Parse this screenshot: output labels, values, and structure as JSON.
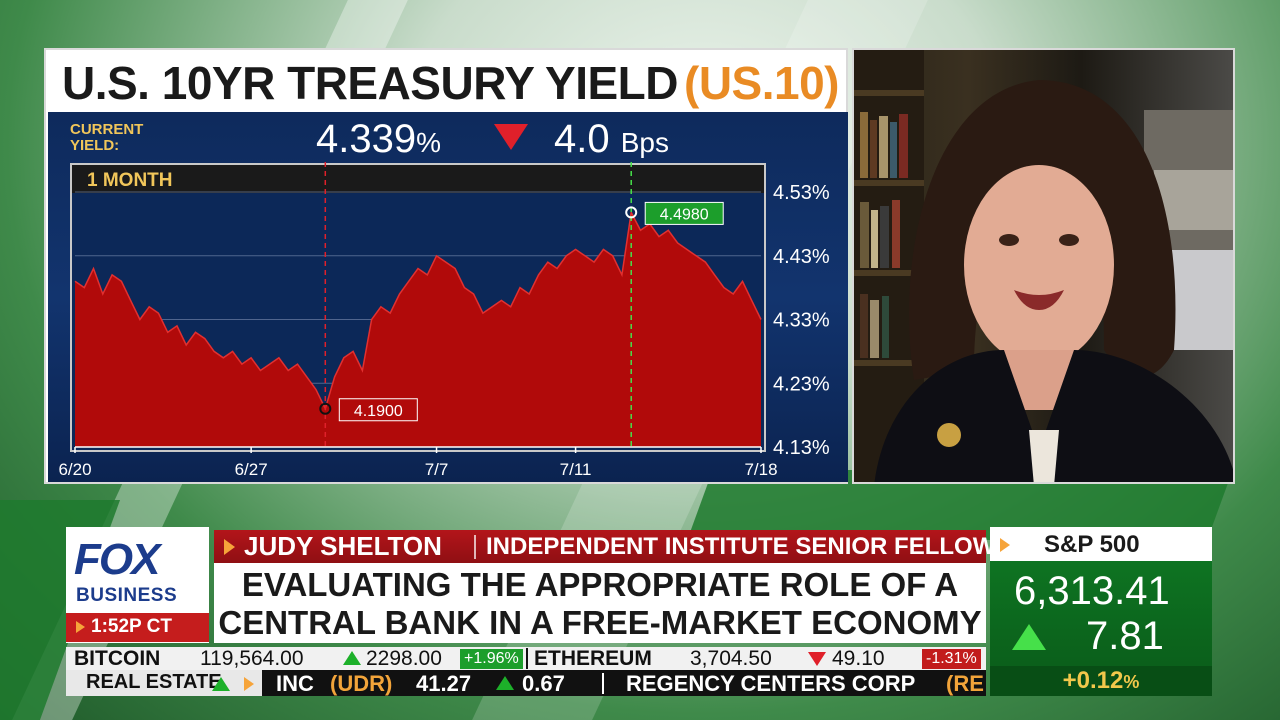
{
  "chart": {
    "title": "U.S. 10YR TREASURY YIELD",
    "symbol": "(US.10)",
    "current_label_line1": "CURRENT",
    "current_label_line2": "YIELD:",
    "current_yield": "4.339",
    "current_yield_unit": "%",
    "change_value": "4.0",
    "change_unit": "Bps",
    "change_direction": "down",
    "range_label": "1 MONTH",
    "colors": {
      "area": "#b10a0a",
      "background": "#0f2d63",
      "up": "#46e04a",
      "down": "#e0202a",
      "accent": "#e98b24"
    }
  },
  "chart_data": {
    "type": "area",
    "title": "U.S. 10YR TREASURY YIELD",
    "range": "1 MONTH",
    "x_ticks": [
      "6/20",
      "6/27",
      "7/7",
      "7/11",
      "7/18"
    ],
    "y_ticks": [
      "4.53%",
      "4.43%",
      "4.33%",
      "4.23%",
      "4.13%"
    ],
    "ylim": [
      4.13,
      4.53
    ],
    "grid": true,
    "x": [
      0,
      1,
      2,
      3,
      4,
      5,
      6,
      7,
      8,
      9,
      10,
      11,
      12,
      13,
      14,
      15,
      16,
      17,
      18,
      19,
      20,
      21,
      22,
      23,
      24,
      25,
      26,
      27,
      28,
      29,
      30,
      31,
      32,
      33,
      34,
      35,
      36,
      37,
      38,
      39,
      40,
      41,
      42,
      43,
      44,
      45,
      46,
      47,
      48,
      49,
      50,
      51,
      52,
      53,
      54,
      55,
      56,
      57,
      58,
      59,
      60,
      61,
      62,
      63,
      64,
      65,
      66,
      67,
      68,
      69,
      70,
      71,
      72,
      73,
      74
    ],
    "values": [
      4.39,
      4.38,
      4.41,
      4.37,
      4.4,
      4.39,
      4.36,
      4.33,
      4.35,
      4.34,
      4.31,
      4.32,
      4.29,
      4.31,
      4.3,
      4.28,
      4.27,
      4.28,
      4.26,
      4.27,
      4.25,
      4.26,
      4.27,
      4.25,
      4.26,
      4.24,
      4.22,
      4.19,
      4.24,
      4.27,
      4.28,
      4.25,
      4.33,
      4.35,
      4.34,
      4.37,
      4.39,
      4.41,
      4.4,
      4.43,
      4.42,
      4.41,
      4.38,
      4.37,
      4.34,
      4.35,
      4.36,
      4.35,
      4.38,
      4.37,
      4.4,
      4.42,
      4.41,
      4.43,
      4.44,
      4.43,
      4.42,
      4.44,
      4.43,
      4.4,
      4.498,
      4.47,
      4.48,
      4.46,
      4.47,
      4.45,
      4.44,
      4.43,
      4.42,
      4.4,
      4.38,
      4.37,
      4.39,
      4.36,
      4.33
    ],
    "annotations": [
      {
        "label": "4.1900",
        "value": 4.19,
        "index": 27,
        "color": "#e0202a"
      },
      {
        "label": "4.4980",
        "value": 4.498,
        "index": 60,
        "color": "#46e04a"
      }
    ]
  },
  "lower_third": {
    "logo_top": "FOX",
    "logo_bottom": "BUSINESS",
    "time": "1:52P CT",
    "guest_name": "JUDY SHELTON",
    "guest_title": "INDEPENDENT INSTITUTE SENIOR FELLOW",
    "headline_line1": "EVALUATING THE APPROPRIATE ROLE OF A",
    "headline_line2": "CENTRAL BANK IN A FREE-MARKET ECONOMY"
  },
  "index_box": {
    "name": "S&P 500",
    "value": "6,313.41",
    "change": "7.81",
    "direction": "up",
    "percent": "+0.12",
    "percent_unit": "%"
  },
  "ticker_crypto": {
    "btc_name": "BITCOIN",
    "btc_price": "119,564.00",
    "btc_change": "2298.00",
    "btc_pct": "+1.96%",
    "eth_name": "ETHEREUM",
    "eth_price": "3,704.50",
    "eth_change": "49.10",
    "eth_pct": "-1.31%"
  },
  "ticker_stocks": {
    "category": "REAL ESTATE",
    "item1_name": "INC",
    "item1_symbol": "(UDR)",
    "item1_price": "41.27",
    "item1_change": "0.67",
    "item2_name": "REGENCY CENTERS CORP",
    "item2_symbol": "(RE"
  }
}
